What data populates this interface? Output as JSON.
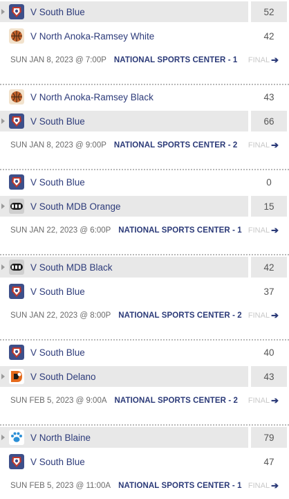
{
  "games": [
    {
      "teams": [
        {
          "name": "V South Blue",
          "score": "52",
          "logo": "south-blue-logo",
          "shaded": true
        },
        {
          "name": "V North Anoka-Ramsey White",
          "score": "42",
          "logo": "basketball-logo",
          "shaded": false
        }
      ],
      "date": "SUN JAN 8, 2023 @ 7:00P",
      "venue": "NATIONAL SPORTS CENTER - 1",
      "status": "FINAL"
    },
    {
      "teams": [
        {
          "name": "V North Anoka-Ramsey Black",
          "score": "43",
          "logo": "basketball-logo",
          "shaded": false
        },
        {
          "name": "V South Blue",
          "score": "66",
          "logo": "south-blue-logo",
          "shaded": true
        }
      ],
      "date": "SUN JAN 8, 2023 @ 9:00P",
      "venue": "NATIONAL SPORTS CENTER - 2",
      "status": "FINAL"
    },
    {
      "teams": [
        {
          "name": "V South Blue",
          "score": "0",
          "logo": "south-blue-logo",
          "shaded": false
        },
        {
          "name": "V South MDB Orange",
          "score": "15",
          "logo": "mdb-logo",
          "shaded": true
        }
      ],
      "date": "SUN JAN 22, 2023 @ 6:00P",
      "venue": "NATIONAL SPORTS CENTER - 1",
      "status": "FINAL"
    },
    {
      "teams": [
        {
          "name": "V South MDB Black",
          "score": "42",
          "logo": "mdb-logo",
          "shaded": true
        },
        {
          "name": "V South Blue",
          "score": "37",
          "logo": "south-blue-logo",
          "shaded": false
        }
      ],
      "date": "SUN JAN 22, 2023 @ 8:00P",
      "venue": "NATIONAL SPORTS CENTER - 2",
      "status": "FINAL"
    },
    {
      "teams": [
        {
          "name": "V South Blue",
          "score": "40",
          "logo": "south-blue-logo",
          "shaded": false
        },
        {
          "name": "V South Delano",
          "score": "43",
          "logo": "delano-logo",
          "shaded": true
        }
      ],
      "date": "SUN FEB 5, 2023 @ 9:00A",
      "venue": "NATIONAL SPORTS CENTER - 2",
      "status": "FINAL"
    },
    {
      "teams": [
        {
          "name": "V North Blaine",
          "score": "79",
          "logo": "paw-logo",
          "shaded": true
        },
        {
          "name": "V South Blue",
          "score": "47",
          "logo": "south-blue-logo",
          "shaded": false
        }
      ],
      "date": "SUN FEB 5, 2023 @ 11:00A",
      "venue": "NATIONAL SPORTS CENTER - 1",
      "status": "FINAL"
    }
  ],
  "colors": {
    "team_text": "#2d3b7a",
    "shaded_row": "#e8e8e8",
    "final_text": "#c8c8c8"
  }
}
